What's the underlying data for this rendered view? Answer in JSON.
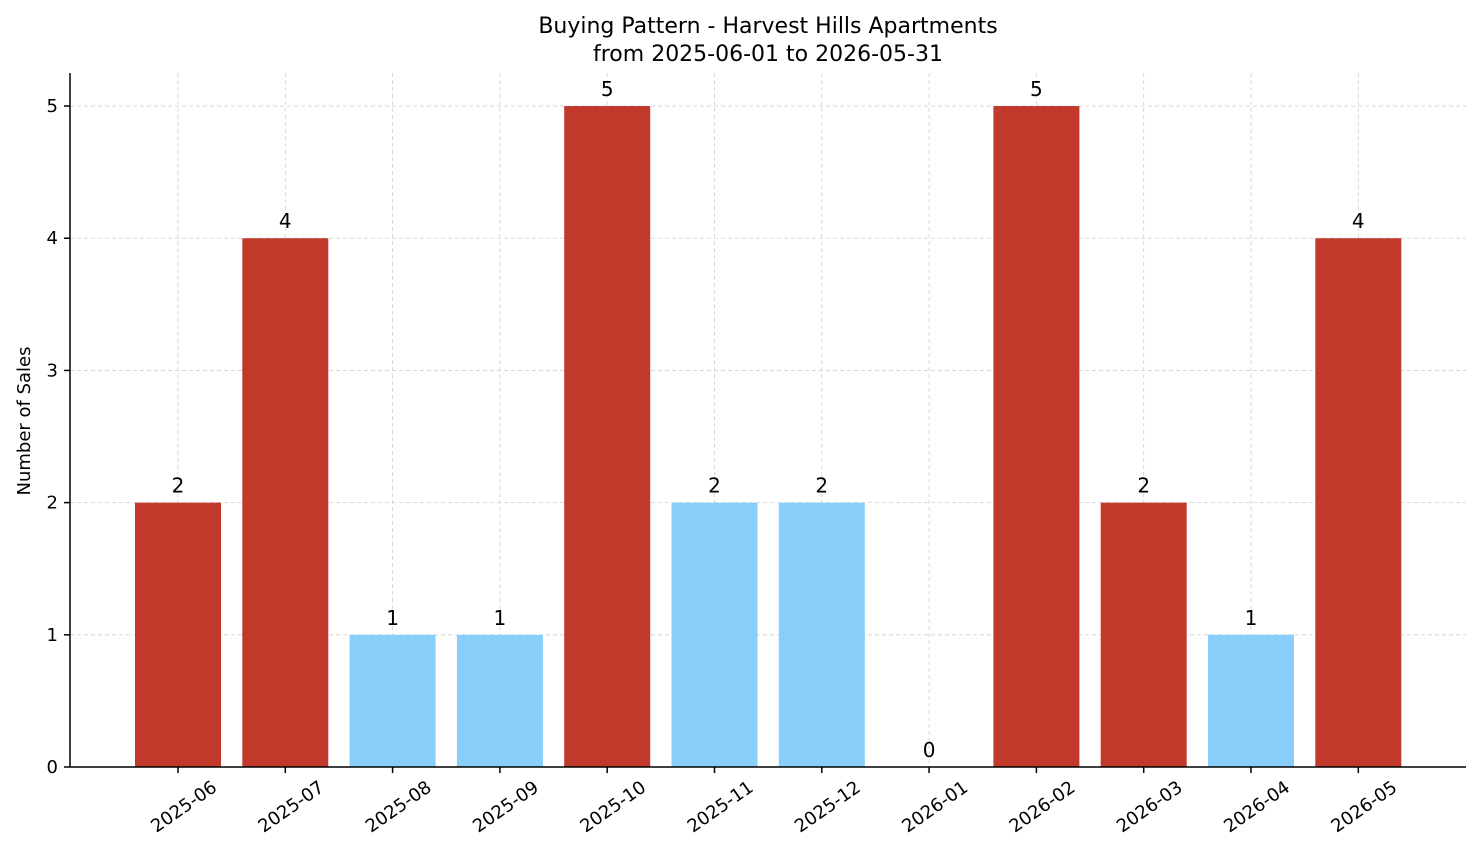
{
  "chart_data": {
    "type": "bar",
    "title": "Buying Pattern - Harvest Hills Apartments",
    "subtitle": "from 2025-06-01 to 2026-05-31",
    "xlabel": "",
    "ylabel": "Number of Sales",
    "categories": [
      "2025-06",
      "2025-07",
      "2025-08",
      "2025-09",
      "2025-10",
      "2025-11",
      "2025-12",
      "2026-01",
      "2026-02",
      "2026-03",
      "2026-04",
      "2026-05"
    ],
    "values": [
      2,
      4,
      1,
      1,
      5,
      2,
      2,
      0,
      5,
      2,
      1,
      4
    ],
    "data_labels": [
      "2",
      "4",
      "1",
      "1",
      "5",
      "2",
      "2",
      "0",
      "5",
      "2",
      "1",
      "4"
    ],
    "bar_colors": [
      "#c0392b",
      "#c0392b",
      "#87cefa",
      "#87cefa",
      "#c0392b",
      "#87cefa",
      "#87cefa",
      "#87cefa",
      "#c0392b",
      "#c0392b",
      "#87cefa",
      "#c0392b"
    ],
    "ylim": [
      0,
      5.25
    ],
    "yticks": [
      "0",
      "1",
      "2",
      "3",
      "4",
      "5"
    ],
    "grid": true,
    "legend": "none"
  }
}
